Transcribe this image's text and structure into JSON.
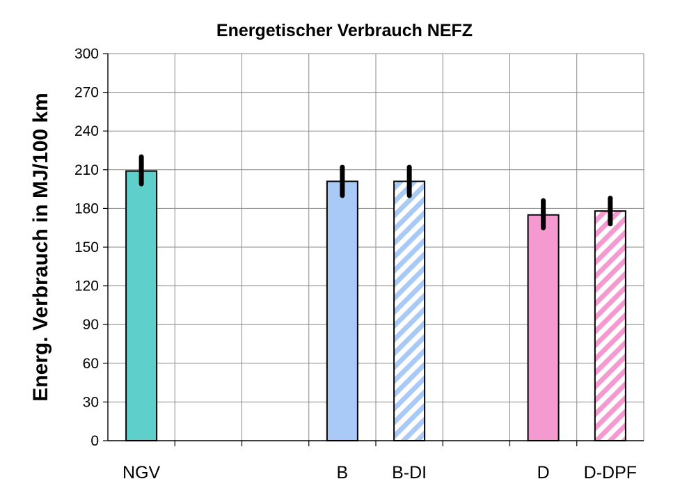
{
  "chart_data": {
    "type": "bar",
    "title": "Energetischer Verbrauch NEFZ",
    "xlabel": "",
    "ylabel": "Energ. Verbrauch in MJ/100 km",
    "ylim": [
      0,
      300
    ],
    "yticks": [
      0,
      30,
      60,
      90,
      120,
      150,
      180,
      210,
      240,
      270,
      300
    ],
    "grid": true,
    "slots": [
      "NGV",
      "",
      "",
      "B",
      "B-DI",
      "",
      "D",
      "D-DPF"
    ],
    "categories": [
      "NGV",
      "B",
      "B-DI",
      "D",
      "D-DPF"
    ],
    "values": [
      209,
      201,
      201,
      175,
      178
    ],
    "error_bars": [
      {
        "low": 199,
        "high": 220
      },
      {
        "low": 190,
        "high": 212
      },
      {
        "low": 190,
        "high": 212
      },
      {
        "low": 165,
        "high": 186
      },
      {
        "low": 168,
        "high": 188
      }
    ],
    "bar_styles": [
      {
        "fill": "#5ecfcb",
        "pattern": "solid"
      },
      {
        "fill": "#a9c9f7",
        "pattern": "solid"
      },
      {
        "fill": "#a9c9f7",
        "pattern": "diagonal-stripes"
      },
      {
        "fill": "#f49ad0",
        "pattern": "solid"
      },
      {
        "fill": "#f49ad0",
        "pattern": "diagonal-stripes"
      }
    ]
  }
}
